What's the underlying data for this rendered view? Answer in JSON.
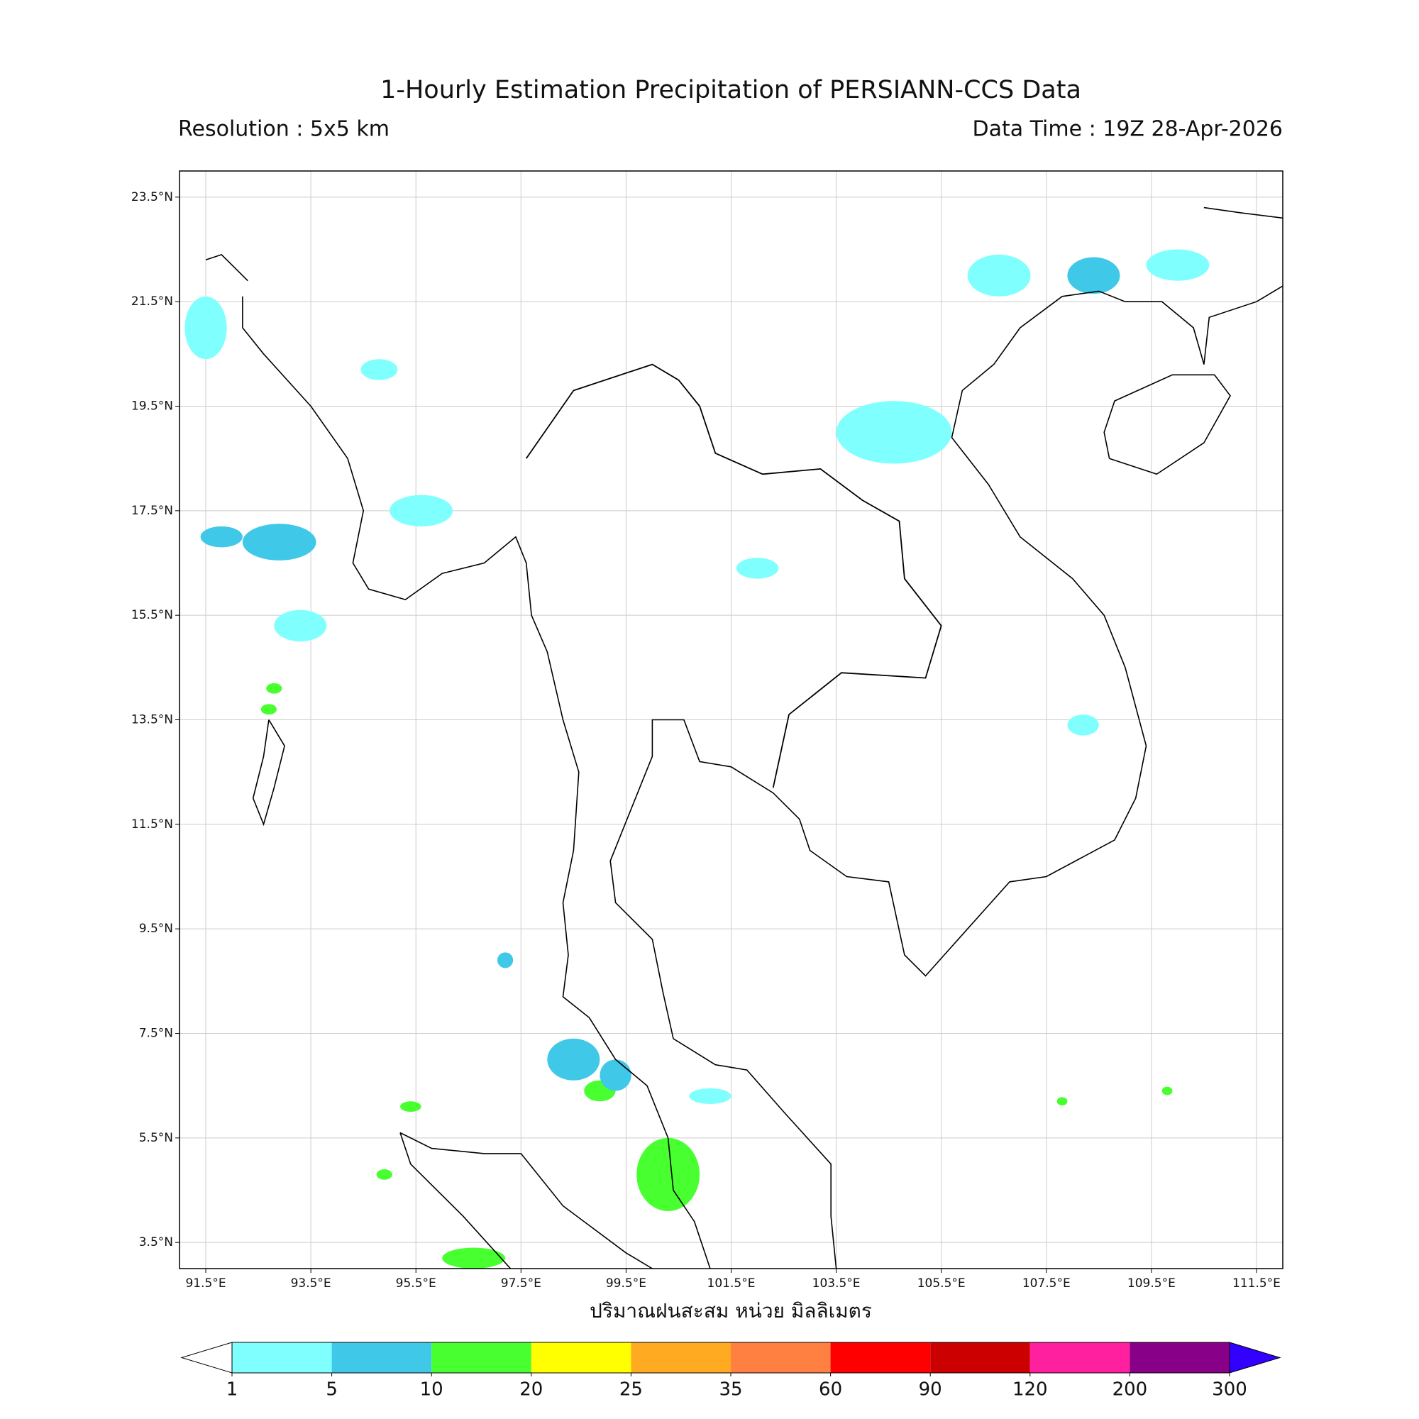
{
  "title": "1-Hourly Estimation Precipitation of PERSIANN-CCS Data",
  "resolution": "Resolution : 5x5 km",
  "data_time": "Data Time : 19Z 28-Apr-2026",
  "map": {
    "xlim": [
      91,
      112
    ],
    "ylim": [
      3,
      24
    ],
    "grid": true,
    "xticks": [
      {
        "value": 91.5,
        "label": "91.5°E"
      },
      {
        "value": 93.5,
        "label": "93.5°E"
      },
      {
        "value": 95.5,
        "label": "95.5°E"
      },
      {
        "value": 97.5,
        "label": "97.5°E"
      },
      {
        "value": 99.5,
        "label": "99.5°E"
      },
      {
        "value": 101.5,
        "label": "101.5°E"
      },
      {
        "value": 103.5,
        "label": "103.5°E"
      },
      {
        "value": 105.5,
        "label": "105.5°E"
      },
      {
        "value": 107.5,
        "label": "107.5°E"
      },
      {
        "value": 109.5,
        "label": "109.5°E"
      },
      {
        "value": 111.5,
        "label": "111.5°E"
      }
    ],
    "yticks": [
      {
        "value": 3.5,
        "label": "3.5°N"
      },
      {
        "value": 5.5,
        "label": "5.5°N"
      },
      {
        "value": 7.5,
        "label": "7.5°N"
      },
      {
        "value": 9.5,
        "label": "9.5°N"
      },
      {
        "value": 11.5,
        "label": "11.5°N"
      },
      {
        "value": 13.5,
        "label": "13.5°N"
      },
      {
        "value": 15.5,
        "label": "15.5°N"
      },
      {
        "value": 17.5,
        "label": "17.5°N"
      },
      {
        "value": 19.5,
        "label": "19.5°N"
      },
      {
        "value": 21.5,
        "label": "21.5°N"
      },
      {
        "value": 23.5,
        "label": "23.5°N"
      }
    ],
    "rain_cells": [
      {
        "lon": 91.5,
        "lat": 21.0,
        "value": 3,
        "extent": [
          0.4,
          0.6
        ]
      },
      {
        "lon": 94.8,
        "lat": 20.2,
        "value": 4,
        "extent": [
          0.35,
          0.2
        ]
      },
      {
        "lon": 92.9,
        "lat": 16.9,
        "value": 6,
        "extent": [
          0.7,
          0.35
        ]
      },
      {
        "lon": 91.8,
        "lat": 17.0,
        "value": 5,
        "extent": [
          0.4,
          0.2
        ]
      },
      {
        "lon": 95.6,
        "lat": 17.5,
        "value": 3,
        "extent": [
          0.6,
          0.3
        ]
      },
      {
        "lon": 93.3,
        "lat": 15.3,
        "value": 4,
        "extent": [
          0.5,
          0.3
        ]
      },
      {
        "lon": 92.8,
        "lat": 14.1,
        "value": 15,
        "extent": [
          0.15,
          0.1
        ]
      },
      {
        "lon": 92.7,
        "lat": 13.7,
        "value": 12,
        "extent": [
          0.15,
          0.1
        ]
      },
      {
        "lon": 98.5,
        "lat": 7.0,
        "value": 6,
        "extent": [
          0.5,
          0.4
        ]
      },
      {
        "lon": 99.0,
        "lat": 6.4,
        "value": 12,
        "extent": [
          0.3,
          0.2
        ]
      },
      {
        "lon": 100.3,
        "lat": 4.8,
        "value": 15,
        "extent": [
          0.6,
          0.7
        ]
      },
      {
        "lon": 96.6,
        "lat": 3.2,
        "value": 12,
        "extent": [
          0.6,
          0.2
        ]
      },
      {
        "lon": 104.6,
        "lat": 19.0,
        "value": 4,
        "extent": [
          1.1,
          0.6
        ]
      },
      {
        "lon": 106.6,
        "lat": 22.0,
        "value": 3,
        "extent": [
          0.6,
          0.4
        ]
      },
      {
        "lon": 108.4,
        "lat": 22.0,
        "value": 8,
        "extent": [
          0.5,
          0.35
        ]
      },
      {
        "lon": 110.0,
        "lat": 22.2,
        "value": 4,
        "extent": [
          0.6,
          0.3
        ]
      },
      {
        "lon": 102.0,
        "lat": 16.4,
        "value": 3,
        "extent": [
          0.4,
          0.2
        ]
      },
      {
        "lon": 108.2,
        "lat": 13.4,
        "value": 4,
        "extent": [
          0.3,
          0.2
        ]
      },
      {
        "lon": 109.8,
        "lat": 6.4,
        "value": 15,
        "extent": [
          0.1,
          0.08
        ]
      },
      {
        "lon": 107.8,
        "lat": 6.2,
        "value": 12,
        "extent": [
          0.1,
          0.08
        ]
      },
      {
        "lon": 94.9,
        "lat": 4.8,
        "value": 15,
        "extent": [
          0.15,
          0.1
        ]
      },
      {
        "lon": 95.4,
        "lat": 6.1,
        "value": 12,
        "extent": [
          0.2,
          0.1
        ]
      },
      {
        "lon": 97.2,
        "lat": 8.9,
        "value": 8,
        "extent": [
          0.15,
          0.15
        ]
      },
      {
        "lon": 99.3,
        "lat": 6.7,
        "value": 5,
        "extent": [
          0.3,
          0.3
        ]
      },
      {
        "lon": 101.1,
        "lat": 6.3,
        "value": 4,
        "extent": [
          0.4,
          0.15
        ]
      }
    ]
  },
  "colorbar": {
    "label": "ปริมาณฝนสะสม หน่วย มิลลิเมตร",
    "levels": [
      1,
      5,
      10,
      20,
      25,
      35,
      60,
      90,
      120,
      200,
      300
    ],
    "colors": [
      "#80ffff",
      "#40c8e8",
      "#48ff30",
      "#ffff00",
      "#ffaa20",
      "#ff8040",
      "#ff0000",
      "#cc0000",
      "#ff20a0",
      "#880088"
    ],
    "under_color": "#ffffff",
    "over_color": "#3300ff"
  }
}
